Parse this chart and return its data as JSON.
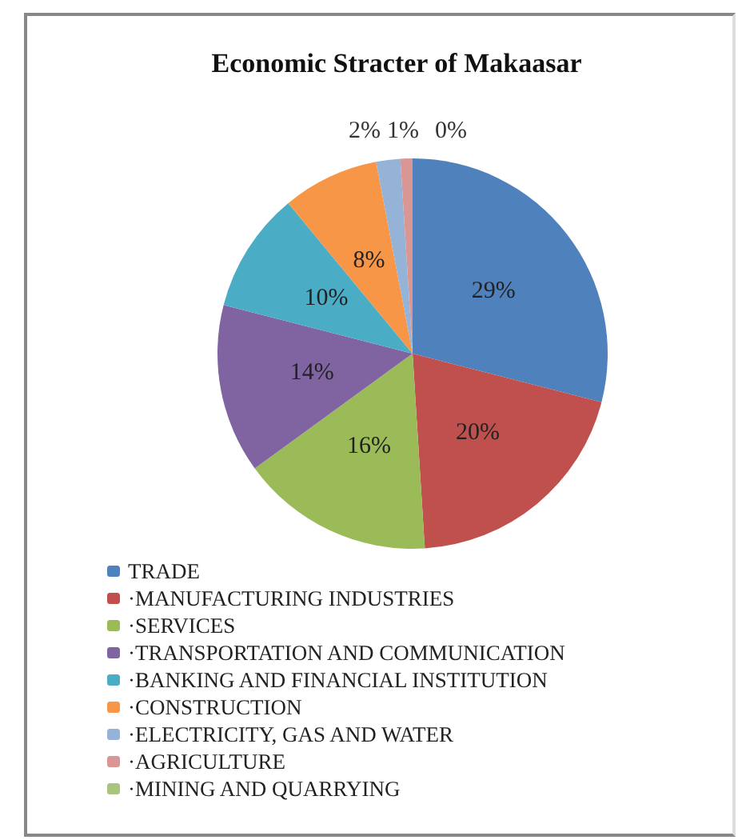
{
  "chart_data": {
    "type": "pie",
    "title": "Economic Stracter of Makaasar",
    "categories": [
      "TRADE",
      "·MANUFACTURING INDUSTRIES",
      "·SERVICES",
      "·TRANSPORTATION AND COMMUNICATION",
      "·BANKING AND FINANCIAL INSTITUTION",
      "·CONSTRUCTION",
      "·ELECTRICITY, GAS AND WATER",
      "·AGRICULTURE",
      "·MINING AND QUARRYING"
    ],
    "values": [
      29,
      20,
      16,
      14,
      10,
      8,
      2,
      1,
      0
    ],
    "colors": [
      "#4f81bd",
      "#c0504d",
      "#9bbb59",
      "#8064a2",
      "#4bacc6",
      "#f79646",
      "#95b3d7",
      "#d99694",
      "#a9c47f"
    ],
    "value_labels": [
      "29%",
      "20%",
      "16%",
      "14%",
      "10%",
      "8%",
      "2%",
      "1%",
      "0%"
    ],
    "legend": "bottom"
  }
}
